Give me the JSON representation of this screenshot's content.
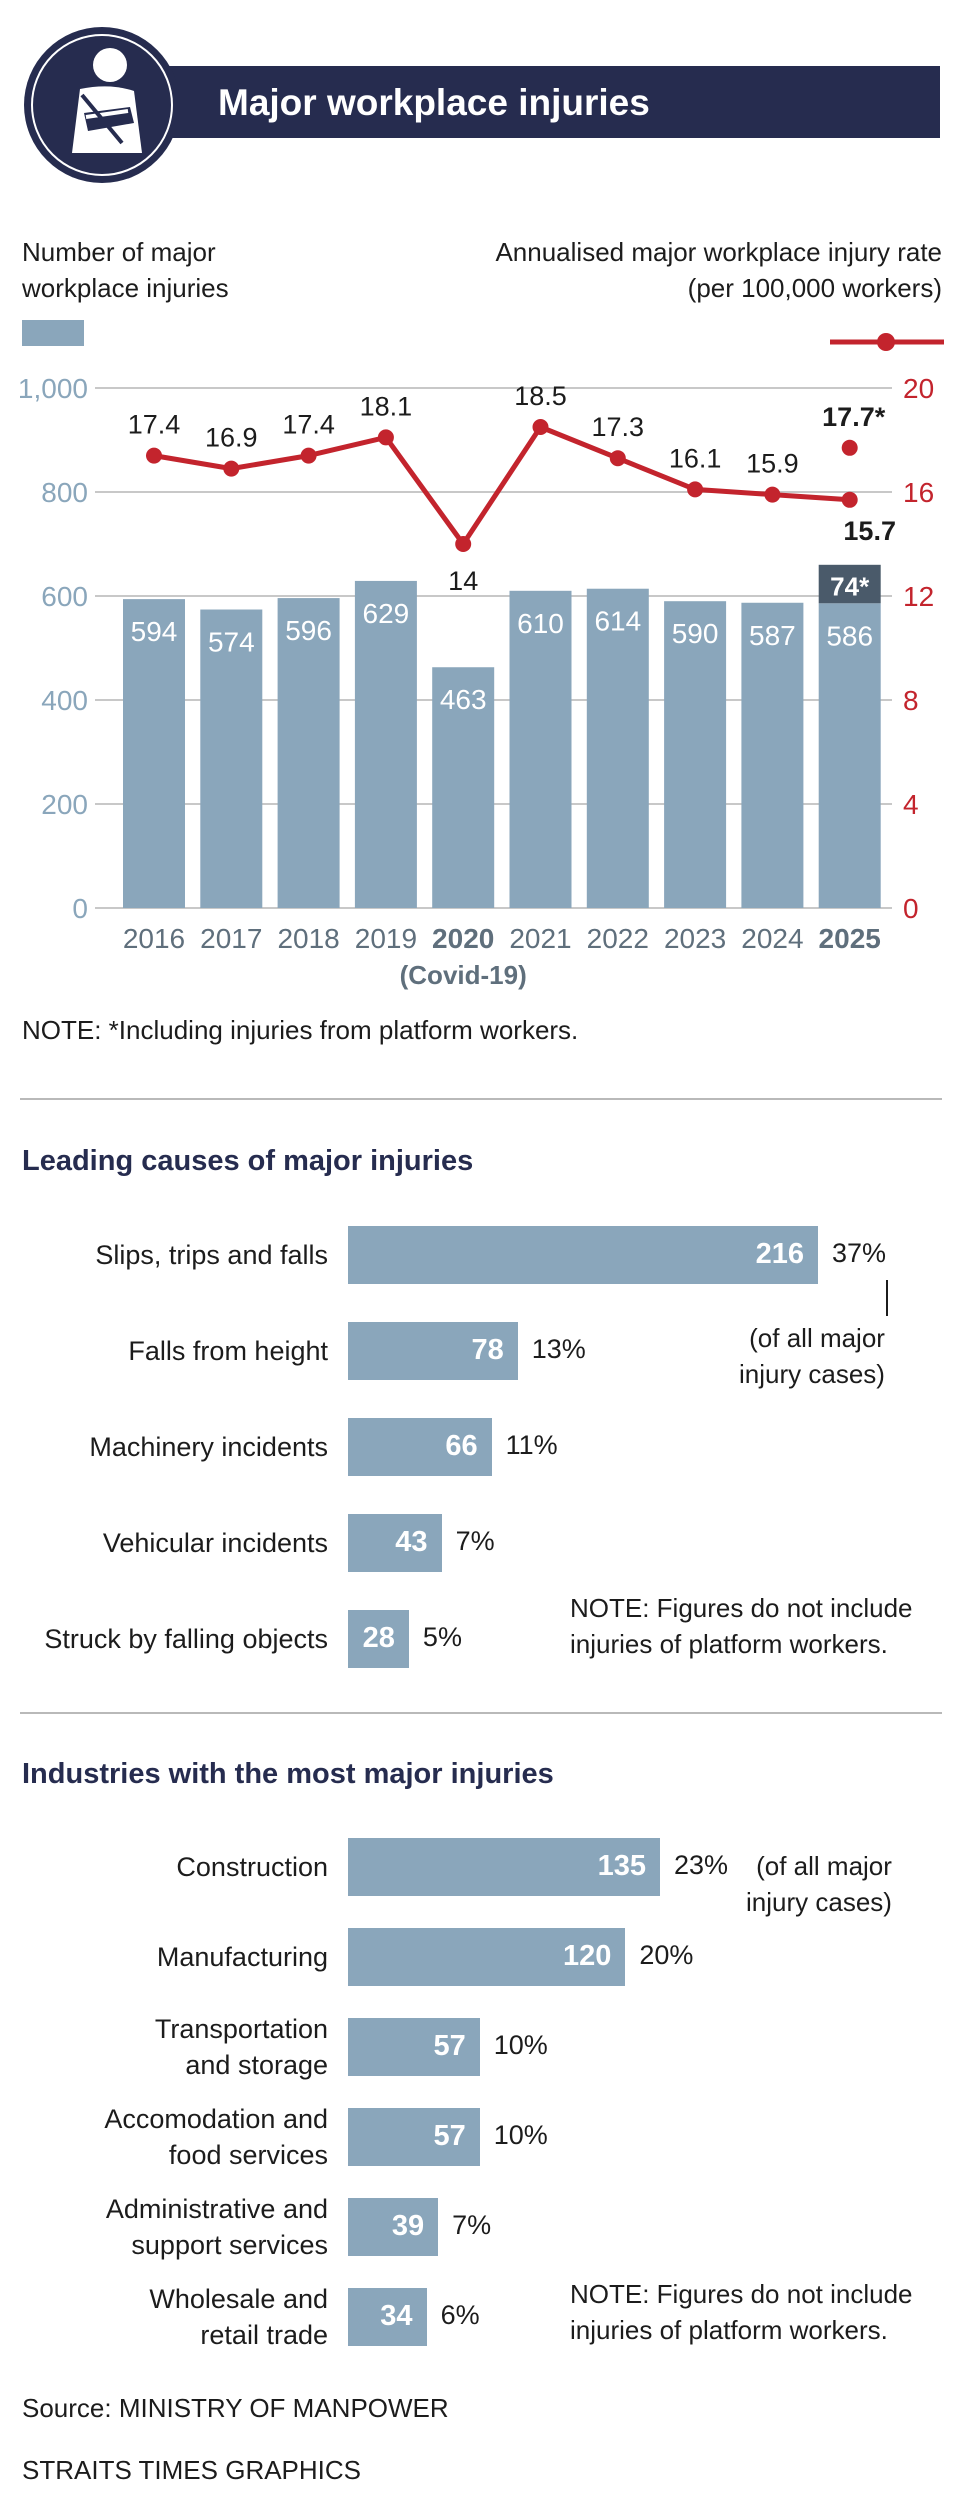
{
  "header": {
    "title": "Major workplace injuries",
    "icon": "injured-arm-icon"
  },
  "legend": {
    "bars": "Number of major workplace injuries",
    "bars_line1": "Number of major",
    "bars_line2": "workplace injuries",
    "line_line1": "Annualised major workplace injury rate",
    "line_line2": "(per 100,000 workers)"
  },
  "chart_data": [
    {
      "type": "bar+line",
      "categories": [
        "2016",
        "2017",
        "2018",
        "2019",
        "2020",
        "2021",
        "2022",
        "2023",
        "2024",
        "2025"
      ],
      "bold_categories": [
        "2020",
        "2025"
      ],
      "sub_label": "(Covid-19)",
      "series": [
        {
          "name": "Number of major workplace injuries",
          "axis": "left",
          "type": "bar",
          "values": [
            594,
            574,
            596,
            629,
            463,
            610,
            614,
            590,
            587,
            586
          ],
          "labels": [
            "594",
            "574",
            "596",
            "629",
            "463",
            "610",
            "614",
            "590",
            "587",
            "586"
          ]
        },
        {
          "name": "Annualised major workplace injury rate (per 100,000 workers)",
          "axis": "right",
          "type": "line",
          "values": [
            17.4,
            16.9,
            17.4,
            18.1,
            14,
            18.5,
            17.3,
            16.1,
            15.9,
            15.7
          ],
          "labels": [
            "17.4",
            "16.9",
            "17.4",
            "18.1",
            "14",
            "18.5",
            "17.3",
            "16.1",
            "15.9",
            "15.7"
          ]
        }
      ],
      "extras": {
        "platform_bar": {
          "category": "2025",
          "value": 74,
          "label": "74*"
        },
        "platform_rate": {
          "category": "2025",
          "value": 17.7,
          "label": "17.7*"
        }
      },
      "left_axis": {
        "ticks": [
          0,
          200,
          400,
          600,
          800,
          1000
        ],
        "tick_labels": [
          "0",
          "200",
          "400",
          "600",
          "800",
          "1,000"
        ],
        "ylim": [
          0,
          1000
        ]
      },
      "right_axis": {
        "ticks": [
          0,
          4,
          8,
          12,
          16,
          20
        ],
        "tick_labels": [
          "0",
          "4",
          "8",
          "12",
          "16",
          "20"
        ],
        "ylim": [
          0,
          20
        ]
      },
      "note": "NOTE: *Including injuries from platform workers."
    },
    {
      "type": "bar",
      "orientation": "horizontal",
      "title": "Leading causes of major injuries",
      "categories": [
        "Slips, trips and falls",
        "Falls from height",
        "Machinery incidents",
        "Vehicular incidents",
        "Struck by falling objects"
      ],
      "values": [
        216,
        78,
        66,
        43,
        28
      ],
      "percent": [
        "37%",
        "13%",
        "11%",
        "7%",
        "5%"
      ],
      "annotation": "(of all major injury cases)",
      "annotation_line1": "(of all major",
      "annotation_line2": "injury cases)",
      "note_line1": "NOTE: Figures do not include",
      "note_line2": "injuries of platform workers."
    },
    {
      "type": "bar",
      "orientation": "horizontal",
      "title": "Industries with the most major injuries",
      "categories": [
        "Construction",
        "Manufacturing",
        "Transportation and storage",
        "Accomodation and food services",
        "Administrative and support services",
        "Wholesale and retail trade"
      ],
      "label_lines": [
        [
          "Construction"
        ],
        [
          "Manufacturing"
        ],
        [
          "Transportation",
          "and storage"
        ],
        [
          "Accomodation and",
          "food services"
        ],
        [
          "Administrative and",
          "support services"
        ],
        [
          "Wholesale and",
          "retail trade"
        ]
      ],
      "values": [
        135,
        120,
        57,
        57,
        39,
        34
      ],
      "percent": [
        "23%",
        "20%",
        "10%",
        "10%",
        "7%",
        "6%"
      ],
      "annotation_line1": "(of all major",
      "annotation_line2": "injury cases)",
      "note_line1": "NOTE: Figures do not include",
      "note_line2": "injuries of platform workers."
    }
  ],
  "footer": {
    "source": "Source: MINISTRY OF MANPOWER",
    "credit": "STRAITS TIMES GRAPHICS"
  },
  "colors": {
    "navy": "#262c4f",
    "bar": "#8aa6bb",
    "line": "#c3242d",
    "dark_bar": "#4a5a6a",
    "axis_left": "#8aa6bb"
  }
}
